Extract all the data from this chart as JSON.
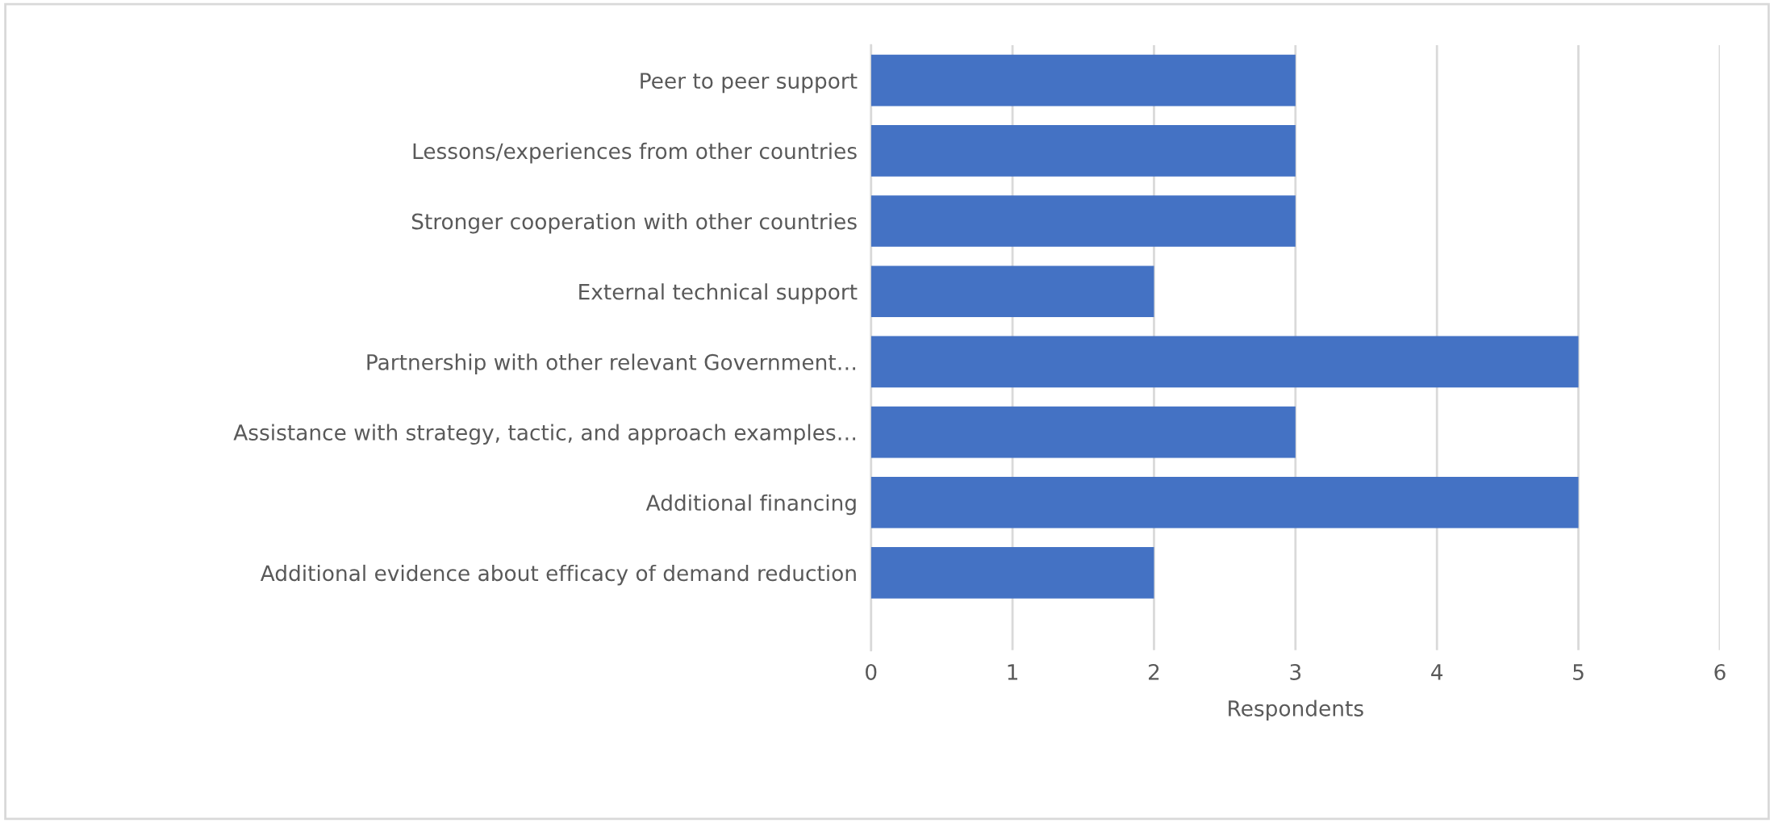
{
  "chart_data": {
    "type": "bar",
    "orientation": "horizontal",
    "xlabel": "Respondents",
    "categories": [
      "Peer to peer support",
      "Lessons/experiences from other countries",
      "Stronger cooperation with other countries",
      "External technical support",
      "Partnership with other relevant Government…",
      "Assistance with strategy, tactic, and approach examples…",
      "Additional financing",
      "Additional evidence about efficacy of demand reduction"
    ],
    "values": [
      3,
      3,
      3,
      2,
      5,
      3,
      5,
      2
    ],
    "color": "#4472c4",
    "xlim": [
      0,
      6
    ],
    "xticks": [
      0,
      1,
      2,
      3,
      4,
      5,
      6
    ],
    "grid": "x",
    "legend": false
  }
}
